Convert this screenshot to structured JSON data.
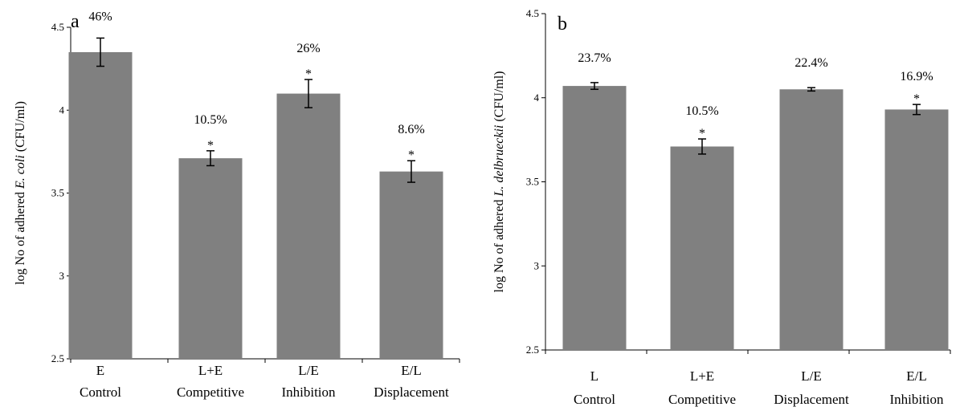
{
  "bar_color": "#808080",
  "chart_data": [
    {
      "type": "bar",
      "panel": "a",
      "ylabel_pre": "log No of adhered ",
      "ylabel_italic": "E. coli",
      "ylabel_post": " (CFU/ml)",
      "ylim": [
        2.5,
        4.5
      ],
      "yticks": [
        "2.5",
        "3",
        "3.5",
        "4",
        "4.5"
      ],
      "categories": [
        {
          "line1": "E",
          "line2": "Control"
        },
        {
          "line1": "L+E",
          "line2": "Competitive"
        },
        {
          "line1": "L/E",
          "line2": "Inhibition"
        },
        {
          "line1": "E/L",
          "line2": "Displacement"
        }
      ],
      "values": [
        4.35,
        3.71,
        4.1,
        3.63
      ],
      "errors": [
        0.085,
        0.045,
        0.085,
        0.065
      ],
      "percent_labels": [
        "46%",
        "10.5%",
        "26%",
        "8.6%"
      ],
      "significance": [
        "",
        "*",
        "*",
        "*"
      ]
    },
    {
      "type": "bar",
      "panel": "b",
      "ylabel_pre": "log No of adhered ",
      "ylabel_italic": "L. delbrueckii",
      "ylabel_post": " (CFU/ml)",
      "ylim": [
        2.5,
        4.5
      ],
      "yticks": [
        "2.5",
        "3",
        "3.5",
        "4",
        "4.5"
      ],
      "categories": [
        {
          "line1": "L",
          "line2": "Control"
        },
        {
          "line1": "L+E",
          "line2": "Competitive"
        },
        {
          "line1": "L/E",
          "line2": "Displacement"
        },
        {
          "line1": "E/L",
          "line2": "Inhibition"
        }
      ],
      "values": [
        4.07,
        3.71,
        4.05,
        3.93
      ],
      "errors": [
        0.02,
        0.045,
        0.01,
        0.03
      ],
      "percent_labels": [
        "23.7%",
        "10.5%",
        "22.4%",
        "16.9%"
      ],
      "significance": [
        "",
        "*",
        "",
        "*"
      ]
    }
  ]
}
